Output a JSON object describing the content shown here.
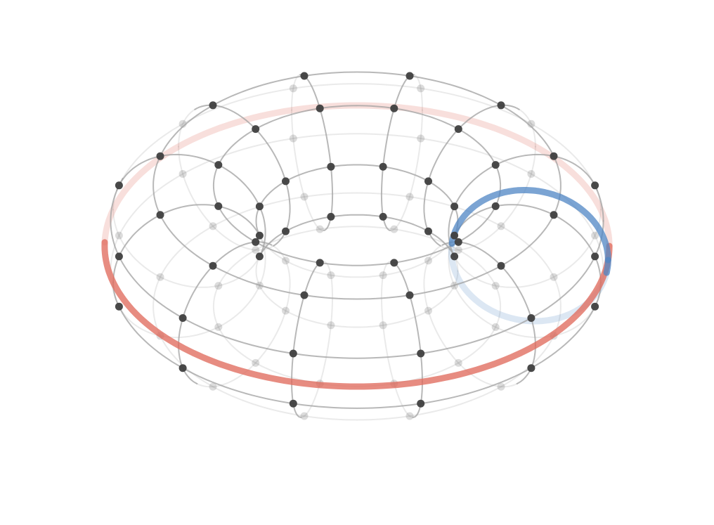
{
  "diagram": {
    "subject": "torus-wireframe",
    "major_circle_count": 12,
    "minor_circle_count": 8,
    "grid_color": "#a0a0a0",
    "vertex_color": "#3f3f3f",
    "hidden_opacity": 0.45,
    "highlight_major": {
      "color": "#e06c5e"
    },
    "highlight_minor": {
      "color": "#4f86c4"
    }
  }
}
